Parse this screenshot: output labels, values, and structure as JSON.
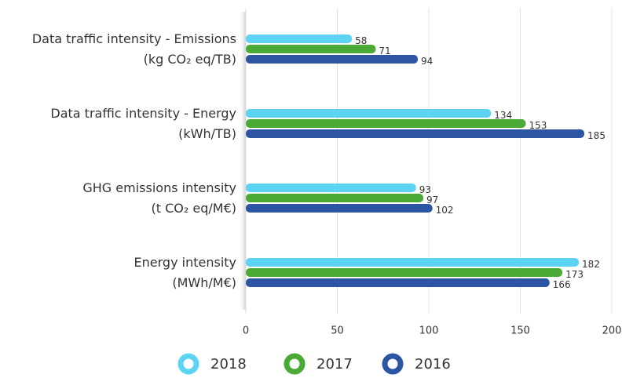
{
  "chart_data": {
    "type": "bar",
    "orientation": "horizontal",
    "categories": [
      [
        "Data traffic intensity - Emissions",
        "(kg CO₂ eq/TB)"
      ],
      [
        "Data traffic intensity - Energy",
        "(kWh/TB)"
      ],
      [
        "GHG emissions intensity",
        "(t CO₂ eq/M€)"
      ],
      [
        "Energy intensity",
        "(MWh/M€)"
      ]
    ],
    "series": [
      {
        "name": "2018",
        "color": "#5dd3f3",
        "values": [
          58,
          134,
          93,
          182
        ]
      },
      {
        "name": "2017",
        "color": "#4aaa35",
        "values": [
          71,
          153,
          97,
          173
        ]
      },
      {
        "name": "2016",
        "color": "#2e55a3",
        "values": [
          94,
          185,
          102,
          166
        ]
      }
    ],
    "xlim": [
      0,
      200
    ],
    "xticks": [
      0,
      50,
      100,
      150,
      200
    ],
    "grid": true,
    "legend": "bottom"
  }
}
